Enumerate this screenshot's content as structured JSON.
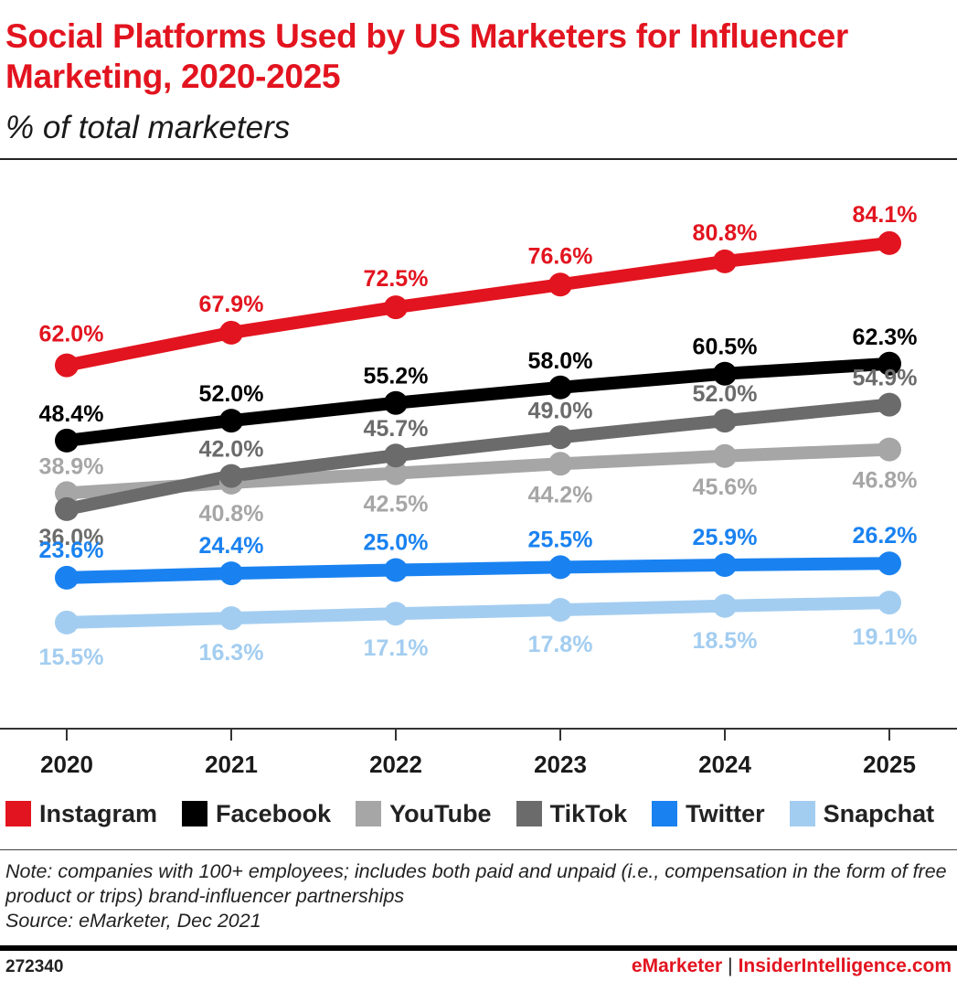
{
  "header": {
    "title": "Social Platforms Used by US Marketers for Influencer Marketing, 2020-2025",
    "subtitle": "% of total marketers"
  },
  "chart_data": {
    "type": "line",
    "title": "Social Platforms Used by US Marketers for Influencer Marketing, 2020-2025",
    "subtitle": "% of total marketers",
    "x": [
      "2020",
      "2021",
      "2022",
      "2023",
      "2024",
      "2025"
    ],
    "ylim": [
      0,
      100
    ],
    "grid": false,
    "legend": "bottom",
    "series": [
      {
        "name": "Instagram",
        "color": "#e2141f",
        "values": [
          62.0,
          67.9,
          72.5,
          76.6,
          80.8,
          84.1
        ],
        "labels": [
          "62.0%",
          "67.9%",
          "72.5%",
          "76.6%",
          "80.8%",
          "84.1%"
        ]
      },
      {
        "name": "Facebook",
        "color": "#000000",
        "values": [
          48.4,
          52.0,
          55.2,
          58.0,
          60.5,
          62.3
        ],
        "labels": [
          "48.4%",
          "52.0%",
          "55.2%",
          "58.0%",
          "60.5%",
          "62.3%"
        ]
      },
      {
        "name": "YouTube",
        "color": "#a6a6a6",
        "values": [
          38.9,
          40.8,
          42.5,
          44.2,
          45.6,
          46.8
        ],
        "labels": [
          "38.9%",
          "40.8%",
          "42.5%",
          "44.2%",
          "45.6%",
          "46.8%"
        ]
      },
      {
        "name": "TikTok",
        "color": "#6b6b6b",
        "values": [
          36.0,
          42.0,
          45.7,
          49.0,
          52.0,
          54.9
        ],
        "labels": [
          "36.0%",
          "42.0%",
          "45.7%",
          "49.0%",
          "52.0%",
          "54.9%"
        ]
      },
      {
        "name": "Twitter",
        "color": "#1a82f0",
        "values": [
          23.6,
          24.4,
          25.0,
          25.5,
          25.9,
          26.2
        ],
        "labels": [
          "23.6%",
          "24.4%",
          "25.0%",
          "25.5%",
          "25.9%",
          "26.2%"
        ]
      },
      {
        "name": "Snapchat",
        "color": "#a3cdf0",
        "values": [
          15.5,
          16.3,
          17.1,
          17.8,
          18.5,
          19.1
        ],
        "labels": [
          "15.5%",
          "16.3%",
          "17.1%",
          "17.8%",
          "18.5%",
          "19.1%"
        ]
      }
    ]
  },
  "legend": {
    "items": [
      {
        "label": "Instagram",
        "color": "#e2141f"
      },
      {
        "label": "Facebook",
        "color": "#000000"
      },
      {
        "label": "YouTube",
        "color": "#a6a6a6"
      },
      {
        "label": "TikTok",
        "color": "#6b6b6b"
      },
      {
        "label": "Twitter",
        "color": "#1a82f0"
      },
      {
        "label": "Snapchat",
        "color": "#a3cdf0"
      }
    ]
  },
  "footer": {
    "note": "Note: companies with 100+ employees; includes both paid and unpaid (i.e., compensation in the form of free product or trips) brand-influencer partnerships",
    "source": "Source: eMarketer, Dec 2021",
    "chart_id": "272340",
    "brand_left": "eMarketer",
    "brand_sep": "|",
    "brand_right": "InsiderIntelligence.com"
  }
}
